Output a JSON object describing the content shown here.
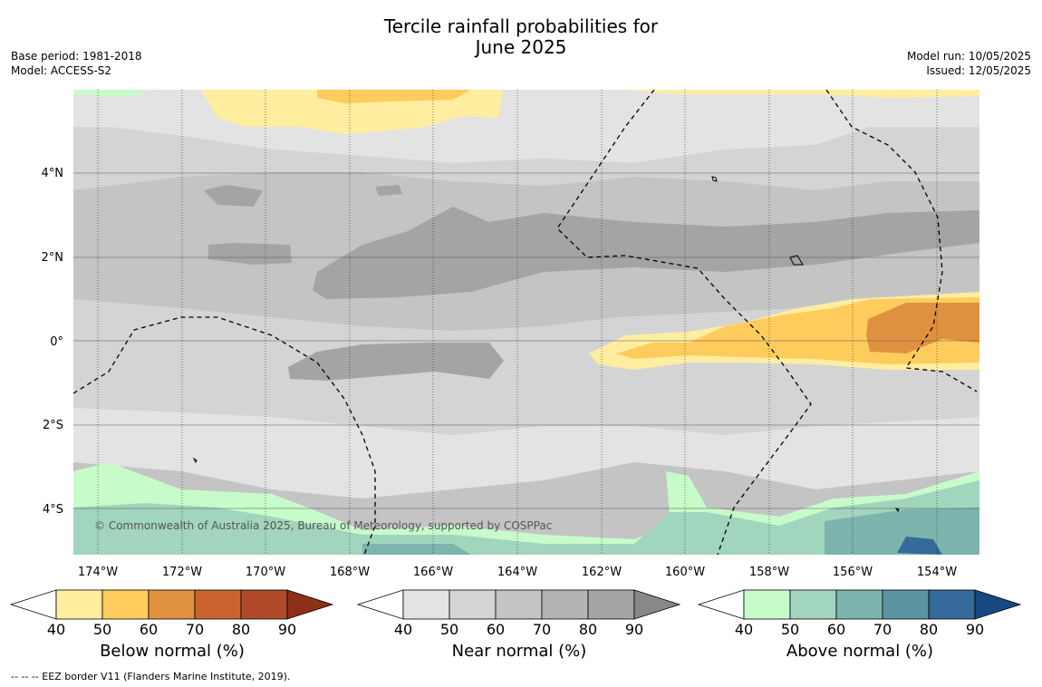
{
  "title": {
    "line1": "Tercile rainfall probabilities for",
    "line2": "June 2025"
  },
  "meta_left": {
    "base_period": "Base period: 1981-2018",
    "model": "Model: ACCESS-S2"
  },
  "meta_right": {
    "model_run": "Model run: 10/05/2025",
    "issued": "Issued: 12/05/2025"
  },
  "map": {
    "lat_labels": [
      "4°N",
      "2°N",
      "0°",
      "2°S",
      "4°S"
    ],
    "lon_labels": [
      "174°W",
      "172°W",
      "170°W",
      "168°W",
      "166°W",
      "164°W",
      "162°W",
      "160°W",
      "158°W",
      "156°W",
      "154°W"
    ],
    "copyright": "© Commonwealth of Australia 2025, Bureau of Meteorology, supported by COSPPac"
  },
  "colorbars": [
    {
      "label": "Below normal (%)",
      "ticks": [
        "40",
        "50",
        "60",
        "70",
        "80",
        "90"
      ],
      "colors": [
        "#ffeda0",
        "#fecc5c",
        "#e0913f",
        "#cc6232",
        "#b04a28",
        "#8c3018"
      ]
    },
    {
      "label": "Near normal (%)",
      "ticks": [
        "40",
        "50",
        "60",
        "70",
        "80",
        "90"
      ],
      "colors": [
        "#e3e3e3",
        "#d4d4d4",
        "#c4c4c4",
        "#b4b4b4",
        "#a4a4a4",
        "#888888"
      ]
    },
    {
      "label": "Above normal (%)",
      "ticks": [
        "40",
        "50",
        "60",
        "70",
        "80",
        "90"
      ],
      "colors": [
        "#c7fcca",
        "#a1d5bd",
        "#7db4ae",
        "#5c93a0",
        "#356a9a",
        "#164a80"
      ]
    }
  ],
  "footnote": "-- -- -- EEZ border V11 (Flanders Marine Institute, 2019)."
}
